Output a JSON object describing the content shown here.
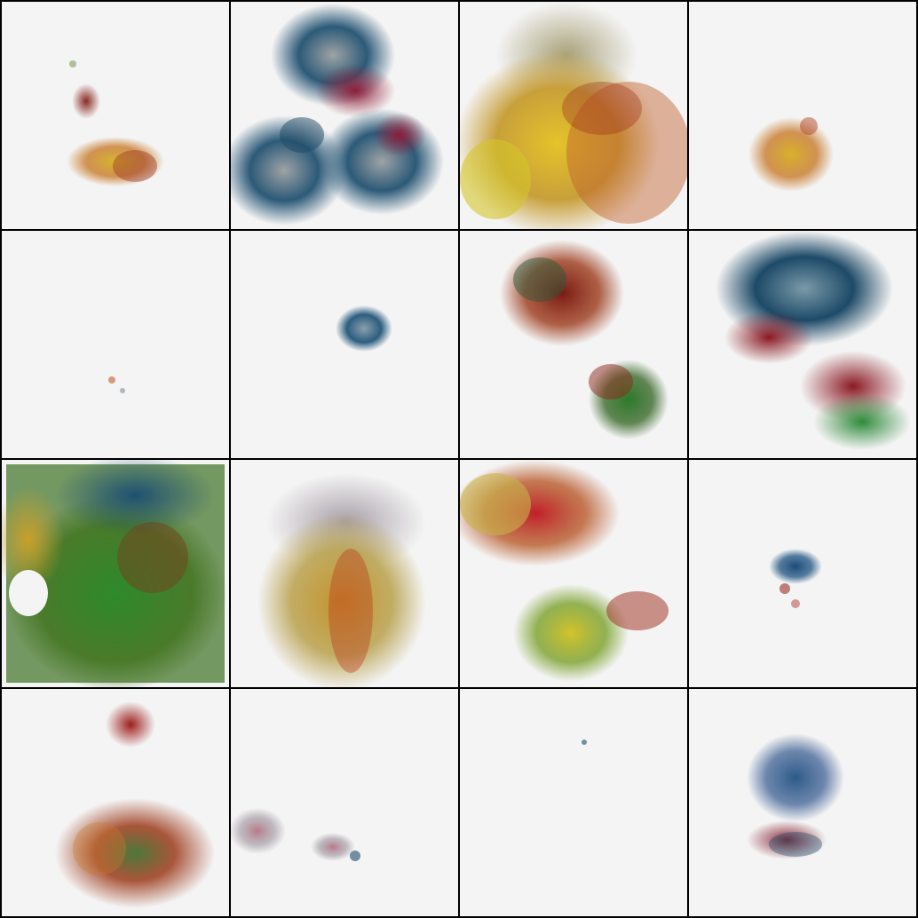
{
  "grid": {
    "rows": 4,
    "cols": 4,
    "background": "#000000",
    "tile_background": "#f4f4f4",
    "palette": {
      "yellow": "#d8b22a",
      "orange": "#c8702a",
      "red": "#9c1f1c",
      "blue": "#1d5876",
      "teal": "#2f6d78",
      "green": "#2c8a2c",
      "gray": "#9aa3a8",
      "pink": "#c35a6b"
    },
    "tiles": [
      {
        "id": "r1c1",
        "colors": [
          "yellow",
          "red",
          "orange"
        ],
        "coverage": 0.08
      },
      {
        "id": "r1c2",
        "colors": [
          "blue",
          "red",
          "gray"
        ],
        "coverage": 0.55
      },
      {
        "id": "r1c3",
        "colors": [
          "yellow",
          "orange",
          "gray",
          "red"
        ],
        "coverage": 0.7
      },
      {
        "id": "r1c4",
        "colors": [
          "yellow",
          "orange"
        ],
        "coverage": 0.08
      },
      {
        "id": "r2c1",
        "colors": [
          "red"
        ],
        "coverage": 0.003
      },
      {
        "id": "r2c2",
        "colors": [
          "blue",
          "gray"
        ],
        "coverage": 0.03
      },
      {
        "id": "r2c3",
        "colors": [
          "red",
          "green",
          "blue"
        ],
        "coverage": 0.3
      },
      {
        "id": "r2c4",
        "colors": [
          "blue",
          "red",
          "green"
        ],
        "coverage": 0.4
      },
      {
        "id": "r3c1",
        "colors": [
          "green",
          "blue",
          "yellow",
          "orange"
        ],
        "coverage": 0.9
      },
      {
        "id": "r3c2",
        "colors": [
          "yellow",
          "orange",
          "red",
          "gray"
        ],
        "coverage": 0.6
      },
      {
        "id": "r3c3",
        "colors": [
          "yellow",
          "red",
          "green",
          "orange"
        ],
        "coverage": 0.5
      },
      {
        "id": "r3c4",
        "colors": [
          "blue",
          "red"
        ],
        "coverage": 0.04
      },
      {
        "id": "r4c1",
        "colors": [
          "red",
          "green",
          "orange"
        ],
        "coverage": 0.3
      },
      {
        "id": "r4c2",
        "colors": [
          "pink",
          "blue"
        ],
        "coverage": 0.08
      },
      {
        "id": "r4c3",
        "colors": [
          "blue"
        ],
        "coverage": 0.002
      },
      {
        "id": "r4c4",
        "colors": [
          "blue",
          "red"
        ],
        "coverage": 0.2
      }
    ]
  }
}
